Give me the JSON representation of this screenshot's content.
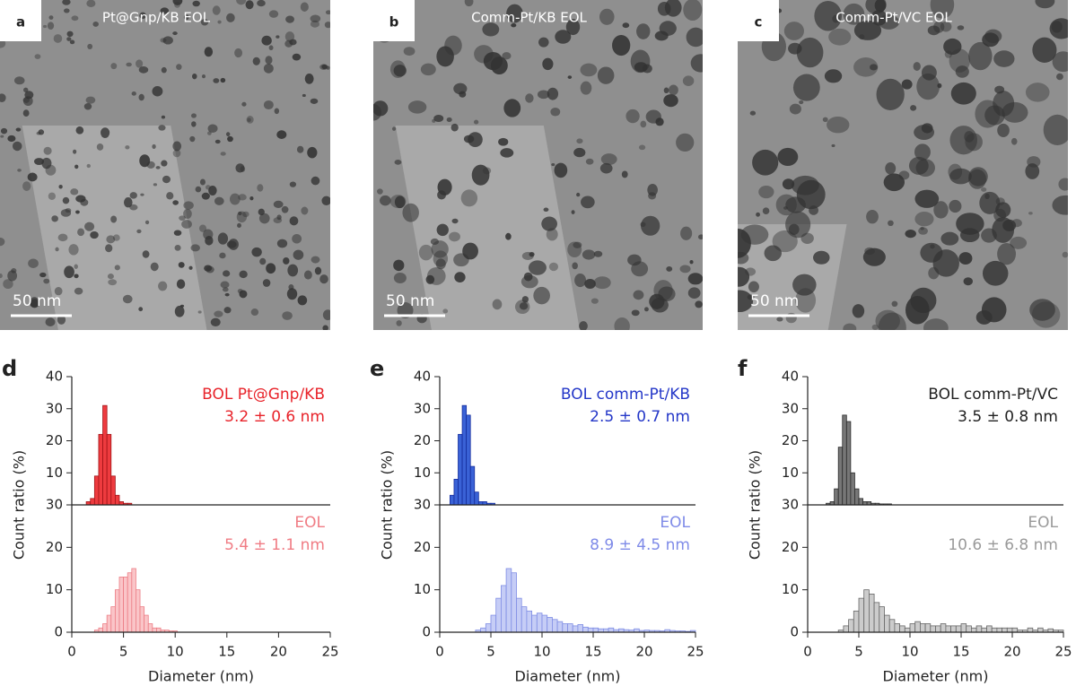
{
  "images": [
    {
      "label": "a",
      "caption": "Pt@Gnp/KB EOL",
      "scale_bar": "50 nm"
    },
    {
      "label": "b",
      "caption": "Comm-Pt/KB EOL",
      "scale_bar": "50 nm"
    },
    {
      "label": "c",
      "caption": "Comm-Pt/VC EOL",
      "scale_bar": "50 nm"
    }
  ],
  "chart_data": [
    {
      "type": "histogram",
      "panel": "d",
      "ylabel": "Count ratio (%)",
      "annotations": [
        "BOL Pt@Gnp/KB",
        "3.2 ± 0.6 nm"
      ],
      "annotation_color": "#e8232a",
      "bins": [
        1.4,
        1.8,
        2.2,
        2.6,
        3.0,
        3.4,
        3.8,
        4.2,
        4.6,
        5.0,
        5.4,
        5.8
      ],
      "values": [
        1,
        2,
        9,
        22,
        31,
        22,
        9,
        3,
        1,
        0.5,
        0.5
      ],
      "color": "#ee3b3f",
      "edgecolor": "#a01418",
      "xlim": [
        0,
        25
      ],
      "ylim": [
        0,
        40
      ],
      "yticks": [
        10,
        20,
        30,
        40
      ]
    },
    {
      "type": "histogram",
      "xlabel": "Diameter (nm)",
      "annotations": [
        "EOL",
        "5.4 ± 1.1 nm"
      ],
      "annotation_color": "#f07c84",
      "bins": [
        2.2,
        2.6,
        3.0,
        3.4,
        3.8,
        4.2,
        4.6,
        5.0,
        5.4,
        5.8,
        6.2,
        6.6,
        7.0,
        7.4,
        7.8,
        8.2,
        8.6,
        9.0,
        9.4,
        9.8,
        10.2
      ],
      "values": [
        0.5,
        1,
        2,
        4,
        6,
        10,
        13,
        13,
        14,
        15,
        10,
        6,
        4,
        2,
        1,
        1,
        0.5,
        0.5,
        0.3,
        0.3
      ],
      "color": "#fac5c8",
      "edgecolor": "#ec7d85",
      "xlim": [
        0,
        25
      ],
      "xticks": [
        0,
        5,
        10,
        15,
        20,
        25
      ],
      "ylim": [
        0,
        30
      ],
      "yticks": [
        0,
        10,
        20,
        30
      ]
    },
    {
      "type": "histogram",
      "panel": "e",
      "ylabel": "Count ratio (%)",
      "annotations": [
        "BOL comm-Pt/KB",
        "2.5 ± 0.7 nm"
      ],
      "annotation_color": "#2437c8",
      "bins": [
        1.0,
        1.4,
        1.8,
        2.2,
        2.6,
        3.0,
        3.4,
        3.8,
        4.2,
        4.6,
        5.0,
        5.4
      ],
      "values": [
        3,
        8,
        22,
        31,
        28,
        12,
        4,
        1,
        1,
        0.5,
        0.5
      ],
      "color": "#3a62d6",
      "edgecolor": "#142c9c",
      "xlim": [
        0,
        25
      ],
      "ylim": [
        0,
        40
      ],
      "yticks": [
        10,
        20,
        30,
        40
      ]
    },
    {
      "type": "histogram",
      "xlabel": "Diameter (nm)",
      "annotations": [
        "EOL",
        "8.9 ± 4.5 nm"
      ],
      "annotation_color": "#7f8be8",
      "bins": [
        3.5,
        4,
        4.5,
        5,
        5.5,
        6,
        6.5,
        7,
        7.5,
        8,
        8.5,
        9,
        9.5,
        10,
        10.5,
        11,
        11.5,
        12,
        12.5,
        13,
        13.5,
        14,
        14.5,
        15,
        15.5,
        16,
        16.5,
        17,
        17.5,
        18,
        18.5,
        19,
        19.5,
        20,
        20.5,
        21,
        21.5,
        22,
        22.5,
        23,
        23.5,
        24,
        24.5,
        25
      ],
      "values": [
        0.5,
        1,
        2,
        4,
        8,
        11,
        15,
        14,
        8,
        6,
        5,
        4,
        4.5,
        4,
        3.5,
        3,
        2.5,
        2,
        2,
        1.5,
        1.8,
        1.2,
        1,
        1,
        0.8,
        0.8,
        1,
        0.6,
        0.8,
        0.6,
        0.5,
        0.8,
        0.4,
        0.5,
        0.4,
        0.4,
        0.3,
        0.6,
        0.4,
        0.3,
        0.3,
        0.2,
        0.4
      ],
      "color": "#c6cdf6",
      "edgecolor": "#7f8de4",
      "xlim": [
        0,
        25
      ],
      "xticks": [
        0,
        5,
        10,
        15,
        20,
        25
      ],
      "ylim": [
        0,
        30
      ],
      "yticks": [
        0,
        10,
        20,
        30
      ]
    },
    {
      "type": "histogram",
      "panel": "f",
      "ylabel": "Count ratio (%)",
      "annotations": [
        "BOL comm-Pt/VC",
        "3.5 ± 0.8 nm"
      ],
      "annotation_color": "#222222",
      "bins": [
        1.8,
        2.2,
        2.6,
        3.0,
        3.4,
        3.8,
        4.2,
        4.6,
        5.0,
        5.4,
        5.8,
        6.2,
        6.6,
        7.0,
        7.4,
        7.8,
        8.2
      ],
      "values": [
        0.5,
        1,
        5,
        18,
        28,
        26,
        10,
        5,
        2,
        1,
        1,
        0.5,
        0.5,
        0.3,
        0.3,
        0.3
      ],
      "color": "#777777",
      "edgecolor": "#2a2a2a",
      "xlim": [
        0,
        25
      ],
      "ylim": [
        0,
        40
      ],
      "yticks": [
        10,
        20,
        30,
        40
      ]
    },
    {
      "type": "histogram",
      "xlabel": "Diameter (nm)",
      "annotations": [
        "EOL",
        "10.6 ± 6.8 nm"
      ],
      "annotation_color": "#9a9a9a",
      "bins": [
        3,
        3.5,
        4,
        4.5,
        5,
        5.5,
        6,
        6.5,
        7,
        7.5,
        8,
        8.5,
        9,
        9.5,
        10,
        10.5,
        11,
        11.5,
        12,
        12.5,
        13,
        13.5,
        14,
        14.5,
        15,
        15.5,
        16,
        16.5,
        17,
        17.5,
        18,
        18.5,
        19,
        19.5,
        20,
        20.5,
        21,
        21.5,
        22,
        22.5,
        23,
        23.5,
        24,
        24.5,
        25
      ],
      "values": [
        0.5,
        1.5,
        3,
        5,
        8,
        10,
        9,
        7,
        6,
        4,
        3,
        2,
        1.5,
        1,
        2,
        2.5,
        2,
        2,
        1.5,
        1.5,
        2,
        1.5,
        1.5,
        1.5,
        2,
        1.5,
        1,
        1.5,
        1,
        1.5,
        1,
        1,
        1,
        1,
        1,
        0.5,
        0.5,
        1,
        0.5,
        1,
        0.5,
        0.8,
        0.5,
        0.5
      ],
      "color": "#cccccc",
      "edgecolor": "#666666",
      "xlim": [
        0,
        25
      ],
      "xticks": [
        0,
        5,
        10,
        15,
        20,
        25
      ],
      "ylim": [
        0,
        30
      ],
      "yticks": [
        0,
        10,
        20,
        30
      ]
    }
  ]
}
